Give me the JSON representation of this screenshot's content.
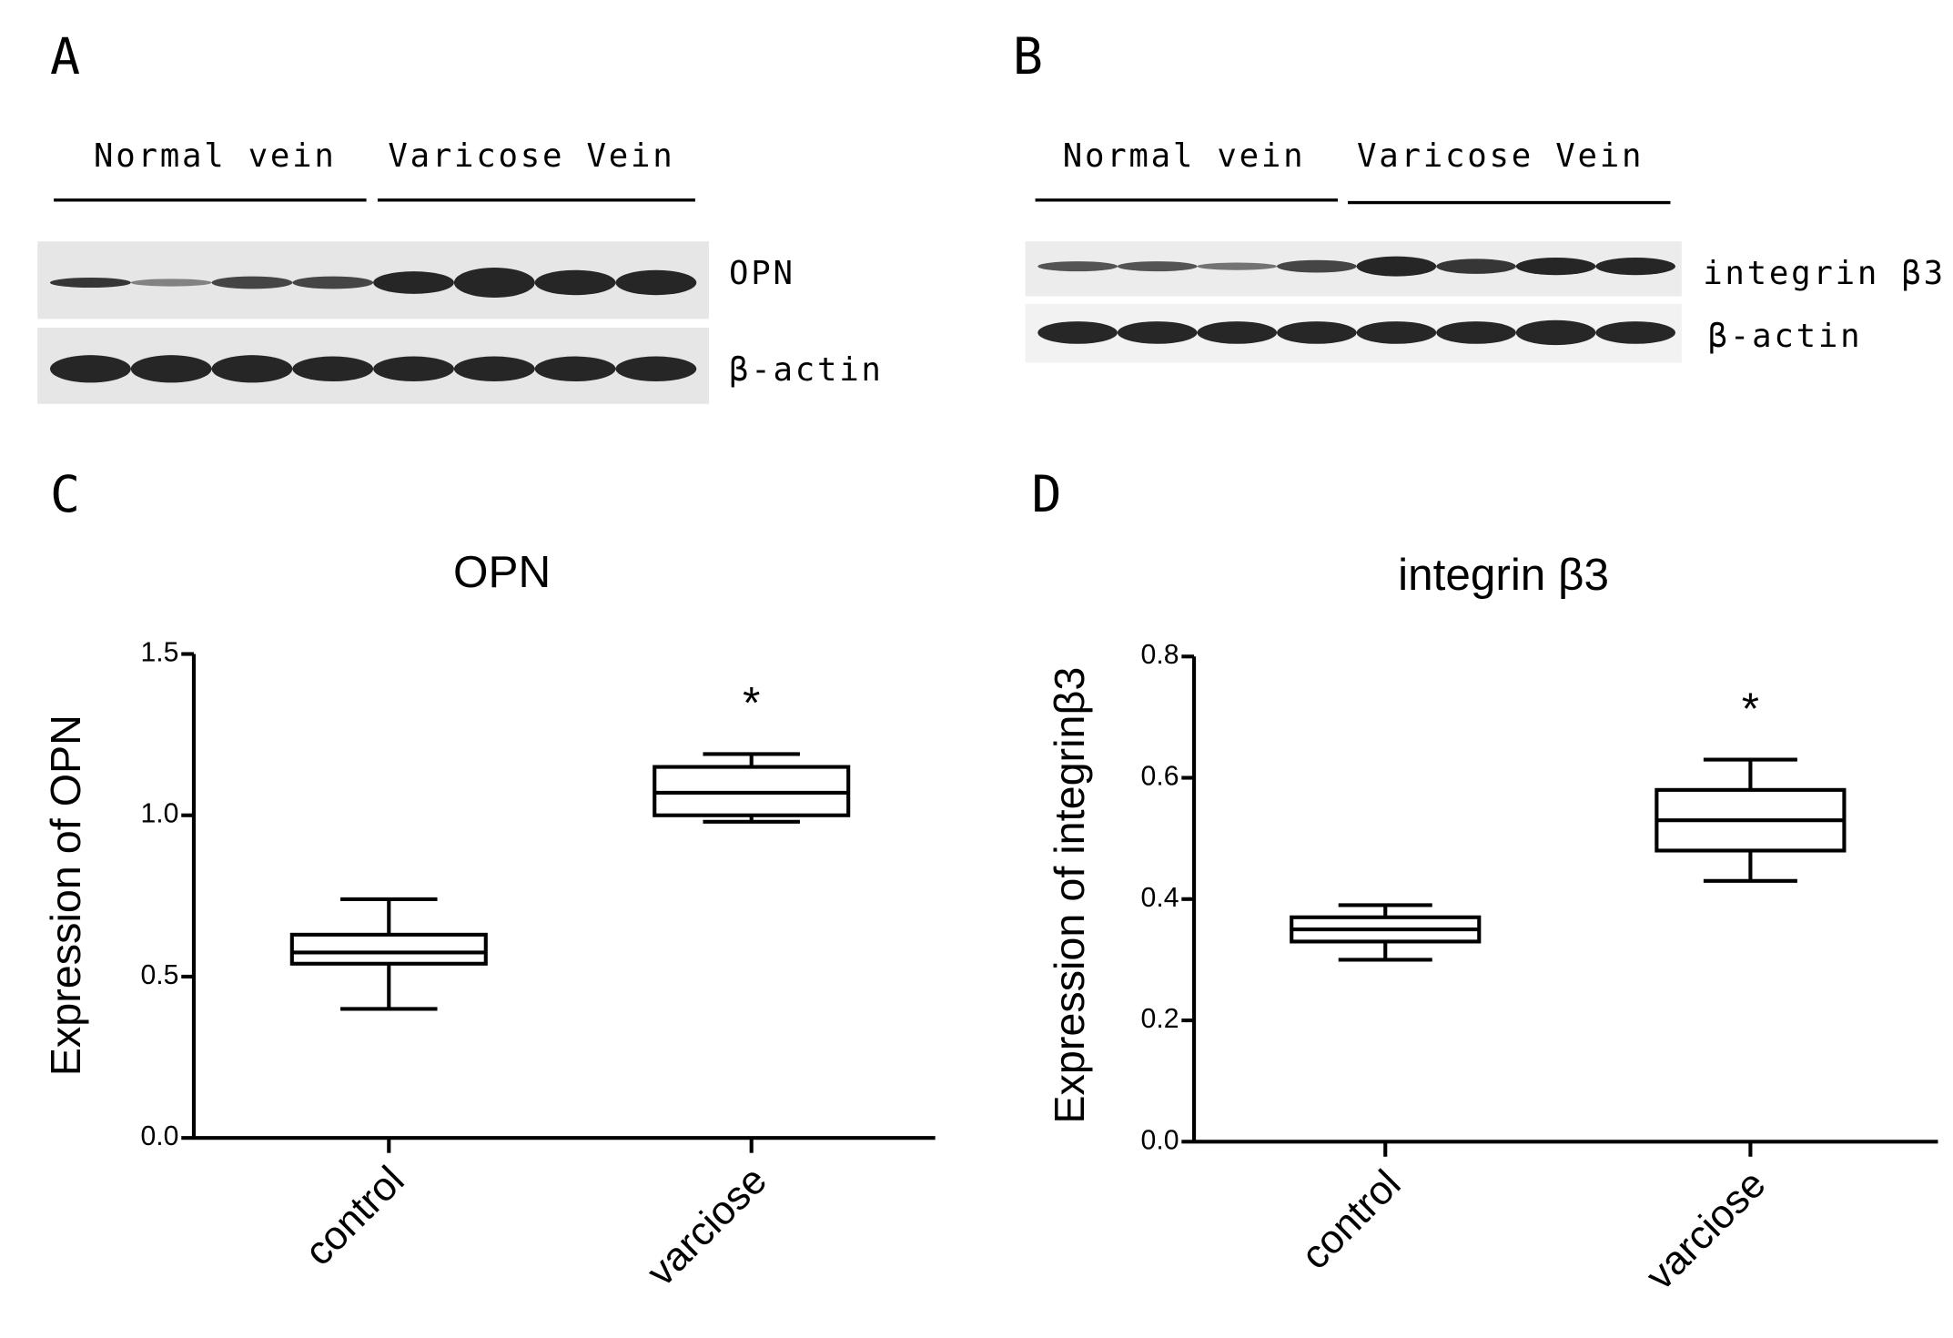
{
  "panels": {
    "A": {
      "letter": "A",
      "groups": [
        "Normal vein",
        "Varicose Vein"
      ],
      "rows": [
        "OPN",
        "β-actin"
      ]
    },
    "B": {
      "letter": "B",
      "groups": [
        "Normal vein",
        "Varicose Vein"
      ],
      "rows": [
        "integrin β3",
        "β-actin"
      ]
    }
  },
  "chart_data": [
    {
      "type": "box",
      "label": "C",
      "title": "OPN",
      "y_label": "Expression of OPN",
      "categories": [
        "control",
        "varciose"
      ],
      "min": [
        0.4,
        0.98
      ],
      "q1": [
        0.54,
        1.0
      ],
      "median": [
        0.575,
        1.07
      ],
      "q3": [
        0.63,
        1.15
      ],
      "max": [
        0.74,
        1.19
      ],
      "annotation": "*",
      "ylim": [
        0,
        1.5
      ],
      "yticks": [
        {
          "value": 0,
          "label": "0.0"
        },
        0.5,
        {
          "value": 1,
          "label": "1.0"
        },
        1.5
      ],
      "color": "#000000"
    },
    {
      "type": "box",
      "label": "D",
      "title": "integrin β3",
      "y_label": "Expression of integrinβ3",
      "categories": [
        "control",
        "varciose"
      ],
      "min": [
        0.3,
        0.43
      ],
      "q1": [
        0.33,
        0.48
      ],
      "median": [
        0.35,
        0.53
      ],
      "q3": [
        0.37,
        0.58
      ],
      "max": [
        0.39,
        0.63
      ],
      "annotation": "*",
      "ylim": [
        0,
        0.8
      ],
      "yticks": [
        {
          "value": 0,
          "label": "0.0"
        },
        0.2,
        0.4,
        0.6,
        0.8
      ],
      "color": "#000000"
    }
  ]
}
